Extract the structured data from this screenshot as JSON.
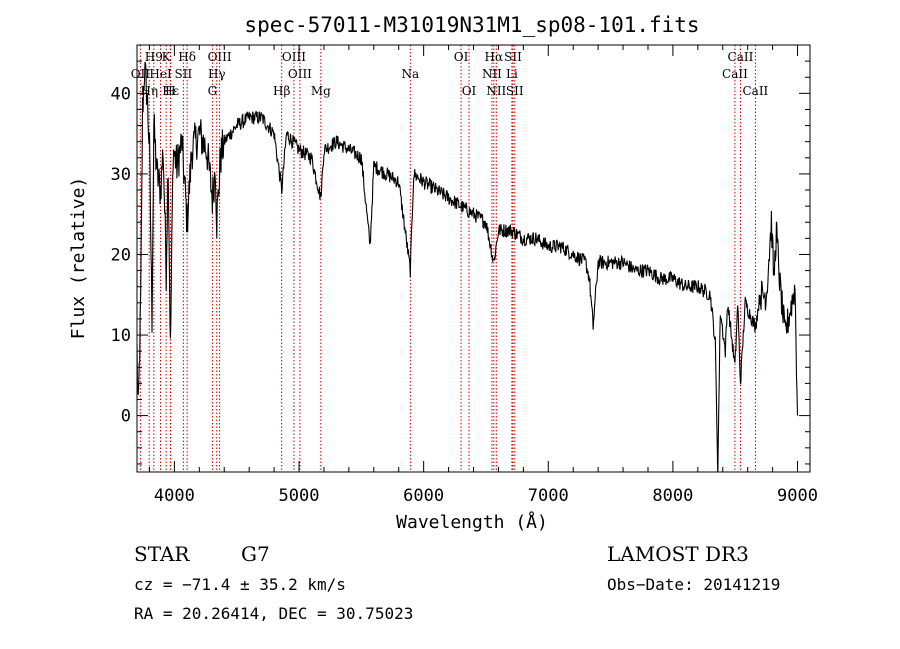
{
  "chart_data": {
    "type": "line",
    "title": "spec-57011-M31019N31M1_sp08-101.fits",
    "xlabel": "Wavelength (Å)",
    "ylabel": "Flux (relative)",
    "xlim": [
      3700,
      9100
    ],
    "ylim": [
      -7,
      46
    ],
    "xticks": [
      4000,
      5000,
      6000,
      7000,
      8000,
      9000
    ],
    "yticks": [
      0,
      10,
      20,
      30,
      40
    ],
    "line_color": "#000000",
    "marker_color": "#cc0000",
    "spectral_lines": [
      {
        "label": "H9",
        "wavelength": 3835,
        "row": 0
      },
      {
        "label": "K",
        "wavelength": 3934,
        "row": 0
      },
      {
        "label": "Hδ",
        "wavelength": 4102,
        "row": 0
      },
      {
        "label": "OIII",
        "wavelength": 4363,
        "row": 0
      },
      {
        "label": "OIII",
        "wavelength": 4959,
        "row": 0
      },
      {
        "label": "OI",
        "wavelength": 6300,
        "row": 0
      },
      {
        "label": "Hα",
        "wavelength": 6563,
        "row": 0
      },
      {
        "label": "SII",
        "wavelength": 6717,
        "row": 0
      },
      {
        "label": "CaII",
        "wavelength": 8542,
        "row": 0
      },
      {
        "label": "OII",
        "wavelength": 3727,
        "row": 1
      },
      {
        "label": "HeI",
        "wavelength": 3889,
        "row": 1
      },
      {
        "label": "SII",
        "wavelength": 4072,
        "row": 1
      },
      {
        "label": "Hγ",
        "wavelength": 4340,
        "row": 1
      },
      {
        "label": "OIII",
        "wavelength": 5007,
        "row": 1
      },
      {
        "label": "Na",
        "wavelength": 5893,
        "row": 1
      },
      {
        "label": "NII",
        "wavelength": 6548,
        "row": 1
      },
      {
        "label": "Li",
        "wavelength": 6708,
        "row": 1
      },
      {
        "label": "CaII",
        "wavelength": 8498,
        "row": 1
      },
      {
        "label": "Hε",
        "wavelength": 3970,
        "row": 2
      },
      {
        "label": "Hη",
        "wavelength": 3798,
        "row": 2
      },
      {
        "label": "H",
        "wavelength": 3968,
        "row": 2
      },
      {
        "label": "G",
        "wavelength": 4305,
        "row": 2
      },
      {
        "label": "Hβ",
        "wavelength": 4861,
        "row": 2
      },
      {
        "label": "Mg",
        "wavelength": 5175,
        "row": 2
      },
      {
        "label": "OI",
        "wavelength": 6364,
        "row": 2
      },
      {
        "label": "NII",
        "wavelength": 6583,
        "row": 2
      },
      {
        "label": "SII",
        "wavelength": 6731,
        "row": 2
      },
      {
        "label": "CaII",
        "wavelength": 8662,
        "row": 2
      }
    ],
    "spectrum_anchors": [
      [
        3700,
        8
      ],
      [
        3710,
        0
      ],
      [
        3730,
        14
      ],
      [
        3745,
        38
      ],
      [
        3760,
        43
      ],
      [
        3780,
        40
      ],
      [
        3800,
        33
      ],
      [
        3820,
        12
      ],
      [
        3835,
        36
      ],
      [
        3860,
        30
      ],
      [
        3889,
        28
      ],
      [
        3910,
        33
      ],
      [
        3934,
        18
      ],
      [
        3950,
        32
      ],
      [
        3968,
        8
      ],
      [
        3990,
        33
      ],
      [
        4020,
        31
      ],
      [
        4060,
        34
      ],
      [
        4102,
        24
      ],
      [
        4140,
        33
      ],
      [
        4200,
        35
      ],
      [
        4260,
        33
      ],
      [
        4305,
        27
      ],
      [
        4330,
        31
      ],
      [
        4340,
        24
      ],
      [
        4370,
        32
      ],
      [
        4400,
        34
      ],
      [
        4500,
        36
      ],
      [
        4600,
        37
      ],
      [
        4700,
        37
      ],
      [
        4800,
        35
      ],
      [
        4861,
        28
      ],
      [
        4900,
        35
      ],
      [
        5000,
        33
      ],
      [
        5100,
        32
      ],
      [
        5175,
        27
      ],
      [
        5200,
        33
      ],
      [
        5300,
        34
      ],
      [
        5400,
        33
      ],
      [
        5500,
        32
      ],
      [
        5570,
        21
      ],
      [
        5600,
        31
      ],
      [
        5700,
        30
      ],
      [
        5800,
        29
      ],
      [
        5893,
        18
      ],
      [
        5920,
        30
      ],
      [
        6000,
        29
      ],
      [
        6100,
        28
      ],
      [
        6200,
        27
      ],
      [
        6300,
        26
      ],
      [
        6400,
        25
      ],
      [
        6500,
        24
      ],
      [
        6563,
        19
      ],
      [
        6600,
        23
      ],
      [
        6700,
        23
      ],
      [
        6800,
        22
      ],
      [
        6900,
        22
      ],
      [
        7000,
        21
      ],
      [
        7100,
        21
      ],
      [
        7200,
        20
      ],
      [
        7300,
        19
      ],
      [
        7330,
        17
      ],
      [
        7360,
        11
      ],
      [
        7400,
        19
      ],
      [
        7500,
        19
      ],
      [
        7600,
        19
      ],
      [
        7700,
        18
      ],
      [
        7800,
        18
      ],
      [
        7900,
        17
      ],
      [
        8000,
        17
      ],
      [
        8100,
        16
      ],
      [
        8200,
        16
      ],
      [
        8300,
        15
      ],
      [
        8340,
        9
      ],
      [
        8360,
        -7
      ],
      [
        8380,
        13
      ],
      [
        8420,
        8
      ],
      [
        8440,
        14
      ],
      [
        8498,
        6
      ],
      [
        8520,
        14
      ],
      [
        8542,
        4
      ],
      [
        8580,
        14
      ],
      [
        8662,
        11
      ],
      [
        8700,
        15
      ],
      [
        8750,
        15
      ],
      [
        8790,
        24
      ],
      [
        8810,
        17
      ],
      [
        8830,
        23
      ],
      [
        8860,
        16
      ],
      [
        8900,
        10
      ],
      [
        8940,
        13
      ],
      [
        8980,
        16
      ],
      [
        9000,
        0
      ]
    ]
  },
  "footer": {
    "class_label": "STAR",
    "subclass": "G7",
    "redshift": "cz = −71.4 ± 35.2 km/s",
    "coords": "RA =  20.26414, DEC =  30.75023",
    "survey": "LAMOST DR3",
    "obs_date": "Obs−Date: 20141219"
  }
}
